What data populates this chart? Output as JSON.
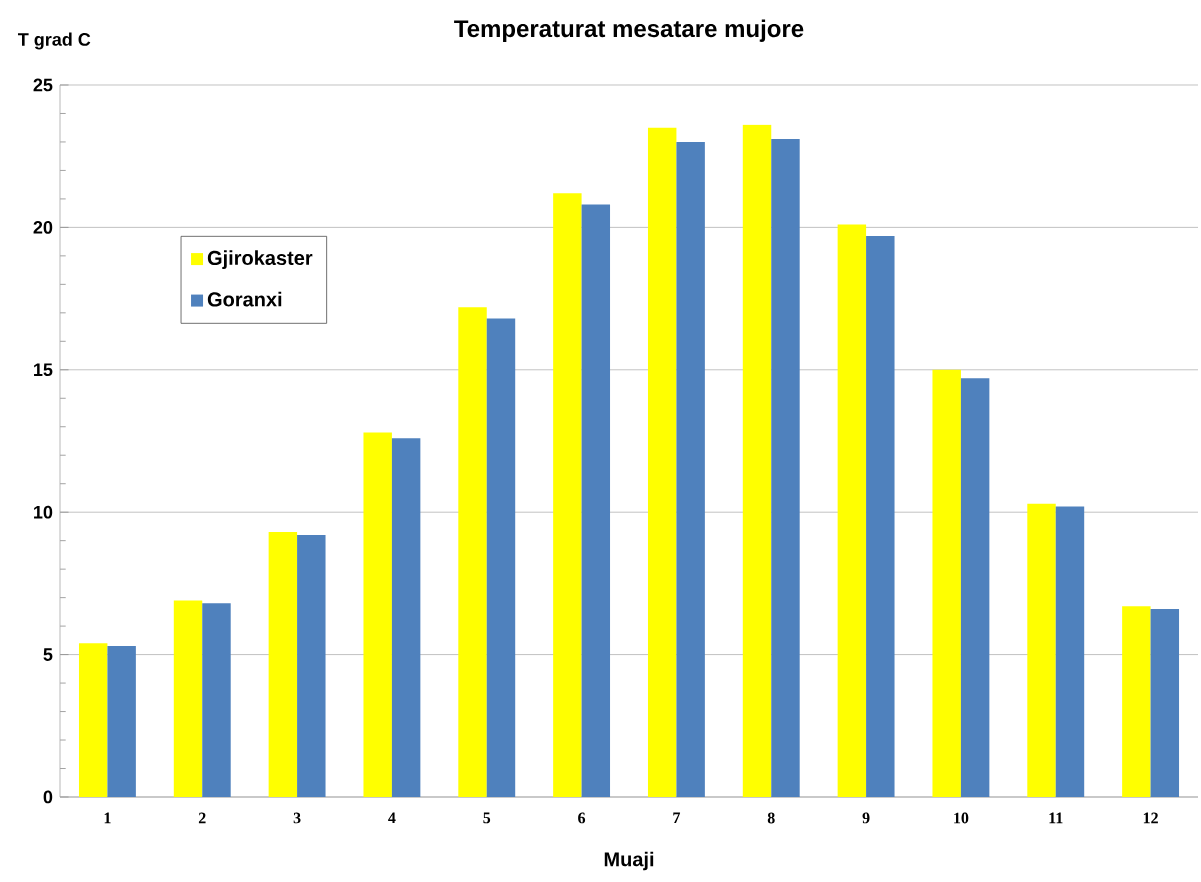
{
  "chart_data": {
    "type": "bar",
    "title": "Temperaturat mesatare mujore",
    "xlabel": "Muaji",
    "ylabel": "T grad C",
    "categories": [
      "1",
      "2",
      "3",
      "4",
      "5",
      "6",
      "7",
      "8",
      "9",
      "10",
      "11",
      "12"
    ],
    "series": [
      {
        "name": "Gjirokaster",
        "color": "#ffff00",
        "values": [
          5.4,
          6.9,
          9.3,
          12.8,
          17.2,
          21.2,
          23.5,
          23.6,
          20.1,
          15.0,
          10.3,
          6.7
        ]
      },
      {
        "name": "Goranxi",
        "color": "#4f81bd",
        "values": [
          5.3,
          6.8,
          9.2,
          12.6,
          16.8,
          20.8,
          23.0,
          23.1,
          19.7,
          14.7,
          10.2,
          6.6
        ]
      }
    ],
    "ylim": [
      0,
      25
    ],
    "yticks": [
      0,
      5,
      10,
      15,
      20,
      25
    ],
    "grid": "y",
    "legend": "top left"
  }
}
